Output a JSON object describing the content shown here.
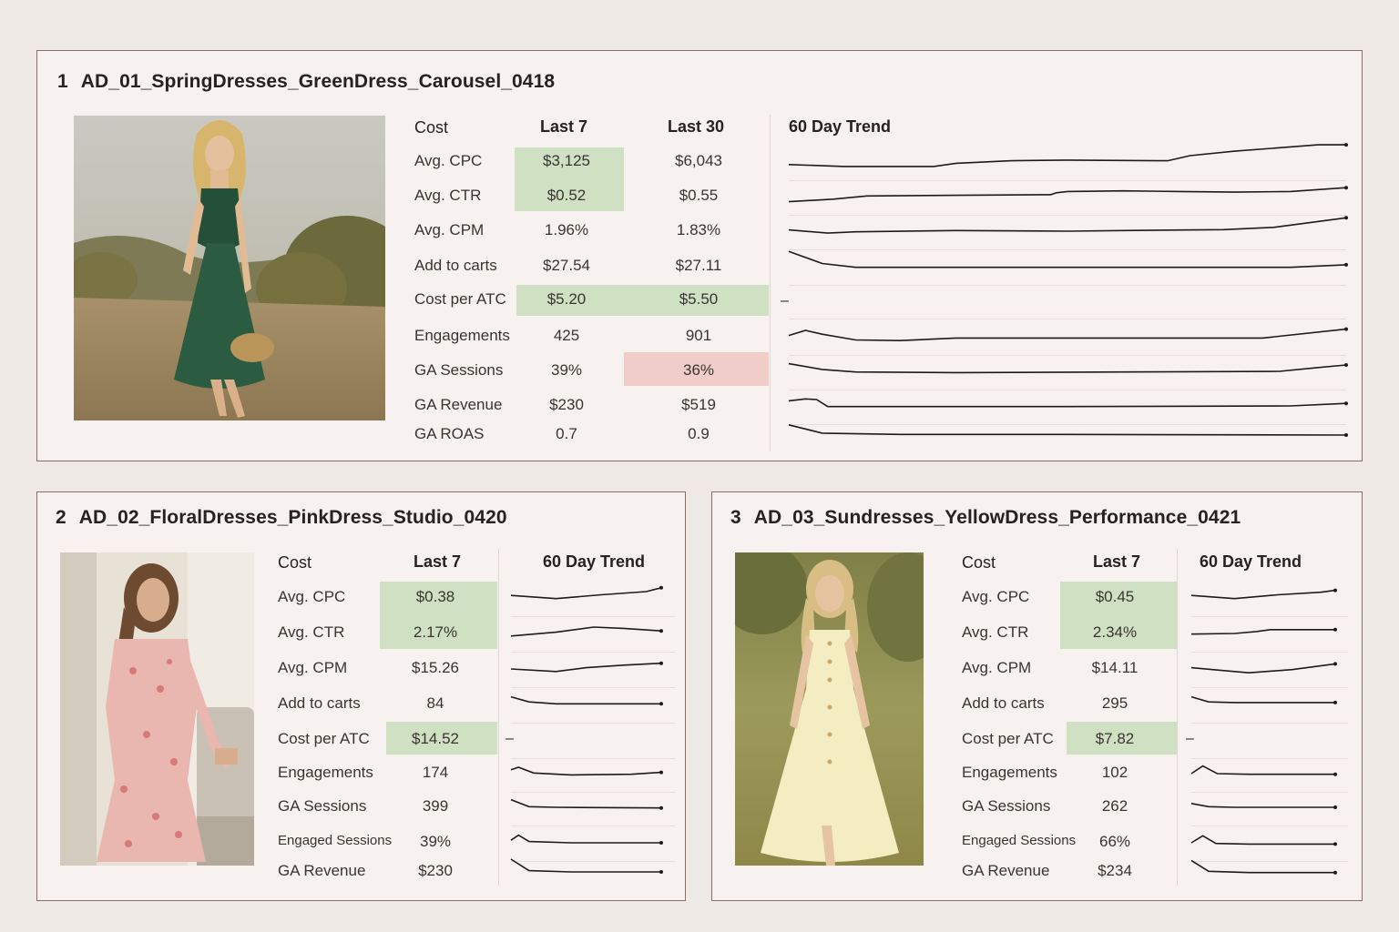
{
  "ads": [
    {
      "number": "1",
      "name": "AD_01_SpringDresses_GreenDress_Carousel_0418",
      "headers": {
        "metric": "Cost",
        "last7": "Last 7",
        "last30": "Last 30",
        "trend": "60 Day Trend"
      },
      "rows": [
        {
          "label": "Avg. CPC",
          "last7": "$3,125",
          "last30": "$6,043"
        },
        {
          "label": "Avg. CTR",
          "last7": "$0.52",
          "last30": "$0.55"
        },
        {
          "label": "Avg. CPM",
          "last7": "1.96%",
          "last30": "1.83%"
        },
        {
          "label": "Add to carts",
          "last7": "$27.54",
          "last30": "$27.11"
        },
        {
          "label": "Cost per ATC",
          "last7": "$5.20",
          "last30": "$5.50"
        },
        {
          "label": "Engagements",
          "last7": "425",
          "last30": "901"
        },
        {
          "label": "GA Sessions",
          "last7": "39%",
          "last30": "36%"
        },
        {
          "label": "GA Revenue",
          "last7": "$230",
          "last30": "$519"
        },
        {
          "label": "GA ROAS",
          "last7": "0.7",
          "last30": "0.9"
        }
      ],
      "trend_dash": "–",
      "image": "woman-green-dress-photo"
    },
    {
      "number": "2",
      "name": "AD_02_FloralDresses_PinkDress_Studio_0420",
      "headers": {
        "metric": "Cost",
        "last7": "Last 7",
        "trend": "60 Day Trend"
      },
      "rows": [
        {
          "label": "Avg. CPC",
          "last7": "$0.38"
        },
        {
          "label": "Avg. CTR",
          "last7": "2.17%"
        },
        {
          "label": "Avg. CPM",
          "last7": "$15.26"
        },
        {
          "label": "Add to carts",
          "last7": "84"
        },
        {
          "label": "Cost per ATC",
          "last7": "$14.52"
        },
        {
          "label": "Engagements",
          "last7": "174"
        },
        {
          "label": "GA Sessions",
          "last7": "399"
        },
        {
          "label": "Engaged Sessions",
          "last7": "39%"
        },
        {
          "label": "GA Revenue",
          "last7": "$230"
        }
      ],
      "trend_dash": "–",
      "image": "woman-pink-floral-dress-photo"
    },
    {
      "number": "3",
      "name": "AD_03_Sundresses_YellowDress_Performance_0421",
      "headers": {
        "metric": "Cost",
        "last7": "Last 7",
        "trend": "60 Day Trend"
      },
      "rows": [
        {
          "label": "Avg. CPC",
          "last7": "$0.45"
        },
        {
          "label": "Avg. CTR",
          "last7": "2.34%"
        },
        {
          "label": "Avg. CPM",
          "last7": "$14.11"
        },
        {
          "label": "Add to carts",
          "last7": "295"
        },
        {
          "label": "Cost per ATC",
          "last7": "$7.82"
        },
        {
          "label": "Engagements",
          "last7": "102"
        },
        {
          "label": "GA Sessions",
          "last7": "262"
        },
        {
          "label": "Engaged Sessions",
          "last7": "66%"
        },
        {
          "label": "GA Revenue",
          "last7": "$234"
        }
      ],
      "trend_dash": "–",
      "image": "woman-yellow-sundress-photo"
    }
  ],
  "colors": {
    "highlight_good": "#cfe0c3",
    "highlight_bad": "#f1cdca"
  }
}
